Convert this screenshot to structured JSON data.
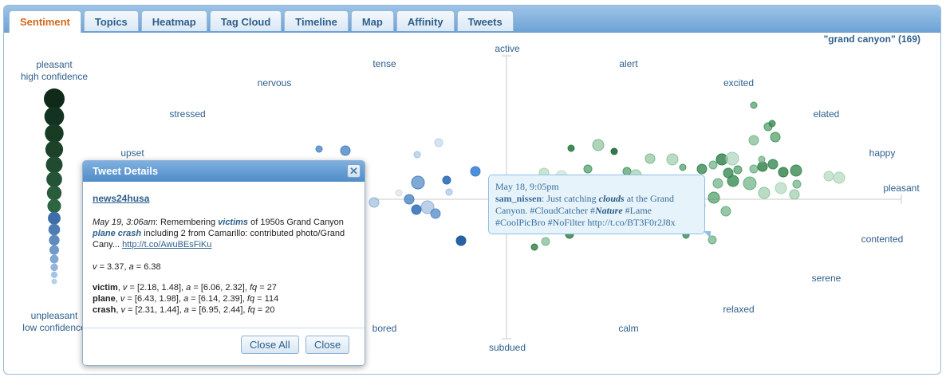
{
  "tabs": [
    {
      "label": "Sentiment",
      "active": true
    },
    {
      "label": "Topics",
      "active": false
    },
    {
      "label": "Heatmap",
      "active": false
    },
    {
      "label": "Tag Cloud",
      "active": false
    },
    {
      "label": "Timeline",
      "active": false
    },
    {
      "label": "Map",
      "active": false
    },
    {
      "label": "Affinity",
      "active": false
    },
    {
      "label": "Tweets",
      "active": false
    }
  ],
  "query_label": "\"grand canyon\" (169)",
  "legend": {
    "top_line1": "pleasant",
    "top_line2": "high confidence",
    "bottom_line1": "unpleasant",
    "bottom_line2": "low confidence"
  },
  "emotion_labels": {
    "active": "active",
    "subdued": "subdued",
    "pleasant": "pleasant",
    "tense": "tense",
    "nervous": "nervous",
    "stressed": "stressed",
    "upset": "upset",
    "alert": "alert",
    "excited": "excited",
    "elated": "elated",
    "happy": "happy",
    "contented": "contented",
    "serene": "serene",
    "relaxed": "relaxed",
    "calm": "calm",
    "bored": "bored"
  },
  "dialog": {
    "title": "Tweet Details",
    "username": "news24husa",
    "timestamp": "May 19, 3:06am",
    "text_1": ": Remembering ",
    "kw_1": "victims",
    "text_2": " of 1950s Grand Canyon ",
    "kw_2": "plane crash",
    "text_3": " including 2 from Camarillo: contributed photo/Grand Cany... ",
    "link": "http://t.co/AwuBEsFiKu",
    "v_label": "v",
    "v_value": "= 3.37, ",
    "a_label": "a",
    "a_value": "= 6.38",
    "words": [
      {
        "word": "victim",
        "v": "[2.18, 1.48]",
        "a": "[6.06, 2.32]",
        "fq": "27"
      },
      {
        "word": "plane",
        "v": "[6.43, 1.98]",
        "a": "[6.14, 2.39]",
        "fq": "114"
      },
      {
        "word": "crash",
        "v": "[2.31, 1.44]",
        "a": "[6.95, 2.44]",
        "fq": "20"
      }
    ],
    "close_all_label": "Close All",
    "close_label": "Close"
  },
  "tooltip": {
    "timestamp": "May 18, 9:05pm",
    "username": "sam_nissen",
    "text_1": ": Just catching ",
    "kw_1": "clouds",
    "text_2": " at the Grand Canyon. #CloudCatcher #",
    "kw_2": "Nature",
    "text_3": " #Lame #CoolPicBro #NoFilter http://t.co/BT3F0r2J8x"
  },
  "colors": {
    "accent_blue": "#2e5f8c",
    "active_tab": "#d2691e",
    "pleasant_green": "#1e4d2b",
    "unpleasant_blue": "#4a7fc1"
  }
}
